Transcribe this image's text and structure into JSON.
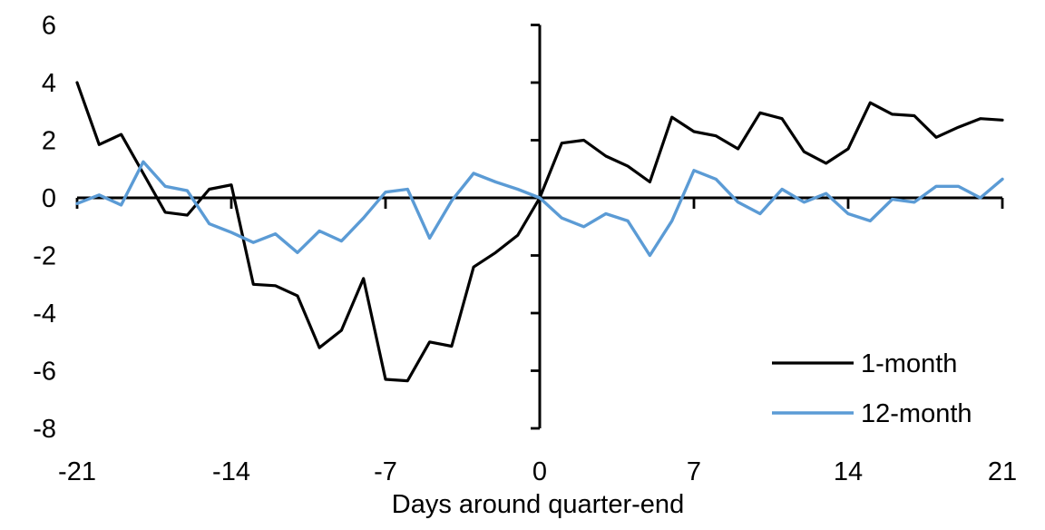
{
  "chart_data": {
    "type": "line",
    "title": "",
    "xlabel": "Days around quarter-end",
    "ylabel": "",
    "xlim": [
      -21,
      21
    ],
    "ylim": [
      -8,
      6
    ],
    "x_ticks": [
      -21,
      -14,
      -7,
      0,
      7,
      14,
      21
    ],
    "y_ticks": [
      6,
      4,
      2,
      0,
      -2,
      -4,
      -6,
      -8
    ],
    "grid": false,
    "legend_position": "lower-right",
    "axis_color": "#000000",
    "x": [
      -21,
      -20,
      -19,
      -18,
      -17,
      -16,
      -15,
      -14,
      -13,
      -12,
      -11,
      -10,
      -9,
      -8,
      -7,
      -6,
      -5,
      -4,
      -3,
      -2,
      -1,
      0,
      1,
      2,
      3,
      4,
      5,
      6,
      7,
      8,
      9,
      10,
      11,
      12,
      13,
      14,
      15,
      16,
      17,
      18,
      19,
      20,
      21
    ],
    "series": [
      {
        "name": "1-month",
        "color": "#000000",
        "values": [
          4.0,
          1.85,
          2.2,
          0.85,
          -0.5,
          -0.6,
          0.3,
          0.45,
          -3.0,
          -3.05,
          -3.4,
          -5.2,
          -4.6,
          -2.8,
          -6.3,
          -6.35,
          -5.0,
          -5.15,
          -2.4,
          -1.9,
          -1.3,
          0.0,
          1.9,
          2.0,
          1.45,
          1.1,
          0.55,
          2.8,
          2.3,
          2.15,
          1.7,
          2.95,
          2.75,
          1.6,
          1.2,
          1.7,
          3.3,
          2.9,
          2.85,
          2.1,
          2.45,
          2.75,
          2.7
        ]
      },
      {
        "name": "12-month",
        "color": "#5B9BD5",
        "values": [
          -0.2,
          0.1,
          -0.25,
          1.25,
          0.4,
          0.25,
          -0.9,
          -1.2,
          -1.55,
          -1.25,
          -1.9,
          -1.15,
          -1.5,
          -0.7,
          0.2,
          0.3,
          -1.4,
          -0.1,
          0.85,
          0.55,
          0.3,
          0.0,
          -0.7,
          -1.0,
          -0.55,
          -0.8,
          -2.0,
          -0.8,
          0.95,
          0.65,
          -0.15,
          -0.55,
          0.3,
          -0.15,
          0.15,
          -0.55,
          -0.8,
          -0.05,
          -0.15,
          0.4,
          0.4,
          0.0,
          0.65
        ]
      }
    ]
  }
}
